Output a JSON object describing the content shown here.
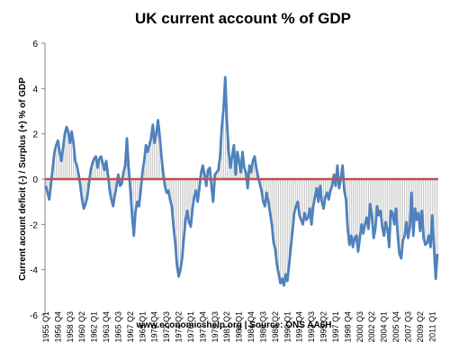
{
  "chart_data": {
    "type": "line",
    "title": "UK current account % of GDP",
    "y_label": "Current acount  deficit (-) / Surplus (+) % of GDP",
    "source": "www.economicshelp.org | Source: ONS AA6H",
    "categories": [
      "1955 Q1",
      null,
      null,
      null,
      null,
      null,
      null,
      "1956 Q4",
      null,
      null,
      null,
      null,
      null,
      null,
      "1958 Q3",
      null,
      null,
      null,
      null,
      null,
      null,
      "1960 Q2",
      null,
      null,
      null,
      null,
      null,
      null,
      "1962 Q1",
      null,
      null,
      null,
      null,
      null,
      null,
      "1963 Q4",
      null,
      null,
      null,
      null,
      null,
      null,
      "1965 Q3",
      null,
      null,
      null,
      null,
      null,
      null,
      "1967 Q2",
      null,
      null,
      null,
      null,
      null,
      null,
      "1969 Q1",
      null,
      null,
      null,
      null,
      null,
      null,
      "1970 Q4",
      null,
      null,
      null,
      null,
      null,
      null,
      "1972 Q3",
      null,
      null,
      null,
      null,
      null,
      null,
      "1974 Q2",
      null,
      null,
      null,
      null,
      null,
      null,
      "1976 Q1",
      null,
      null,
      null,
      null,
      null,
      null,
      "1977 Q4",
      null,
      null,
      null,
      null,
      null,
      null,
      "1979 Q3",
      null,
      null,
      null,
      null,
      null,
      null,
      "1981 Q2",
      null,
      null,
      null,
      null,
      null,
      null,
      "1983 Q1",
      null,
      null,
      null,
      null,
      null,
      null,
      "1984 Q4",
      null,
      null,
      null,
      null,
      null,
      null,
      "1986 Q3",
      null,
      null,
      null,
      null,
      null,
      null,
      "1988 Q2",
      null,
      null,
      null,
      null,
      null,
      null,
      "1990 Q1",
      null,
      null,
      null,
      null,
      null,
      null,
      "1991 Q4",
      null,
      null,
      null,
      null,
      null,
      null,
      "1993 Q3",
      null,
      null,
      null,
      null,
      null,
      null,
      "1995 Q2",
      null,
      null,
      null,
      null,
      null,
      null,
      "1997 Q1",
      null,
      null,
      null,
      null,
      null,
      null,
      "1998 Q4",
      null,
      null,
      null,
      null,
      null,
      null,
      "2000 Q3",
      null,
      null,
      null,
      null,
      null,
      null,
      "2002 Q2",
      null,
      null,
      null,
      null,
      null,
      null,
      "2004 Q1",
      null,
      null,
      null,
      null,
      null,
      null,
      "2005 Q4",
      null,
      null,
      null,
      null,
      null,
      null,
      "2007 Q3",
      null,
      null,
      null,
      null,
      null,
      null,
      "2009 Q2",
      null,
      null,
      null,
      null,
      null,
      null,
      "2011 Q1",
      null,
      null,
      null
    ],
    "series": [
      {
        "color": "#4f81bd",
        "drop_line_color": "#a6a6a6",
        "values": [
          -0.3,
          -0.6,
          -0.9,
          -0.2,
          0.5,
          1.2,
          1.5,
          1.7,
          1.2,
          0.8,
          1.4,
          2.0,
          2.3,
          2.1,
          1.6,
          2.1,
          1.6,
          0.8,
          0.6,
          0.2,
          -0.3,
          -0.9,
          -1.3,
          -1.1,
          -0.8,
          -0.2,
          0.4,
          0.7,
          0.9,
          1.0,
          0.5,
          0.9,
          1.0,
          0.7,
          0.4,
          0.8,
          0.2,
          -0.5,
          -0.9,
          -1.2,
          -0.7,
          -0.3,
          0.2,
          -0.3,
          -0.2,
          0.3,
          0.6,
          1.8,
          0.5,
          -0.5,
          -1.6,
          -2.5,
          -1.4,
          -1.0,
          -1.2,
          -0.5,
          0.3,
          0.8,
          1.5,
          1.2,
          1.5,
          1.8,
          2.4,
          1.6,
          2.0,
          2.6,
          1.9,
          1.0,
          0.3,
          -0.3,
          -0.6,
          -0.5,
          -0.9,
          -1.2,
          -2.1,
          -2.8,
          -3.8,
          -4.3,
          -4.0,
          -3.5,
          -2.6,
          -1.8,
          -1.4,
          -1.9,
          -2.1,
          -1.3,
          -0.8,
          -0.5,
          -1.0,
          -0.4,
          0.3,
          0.6,
          0.2,
          -0.3,
          0.4,
          0.5,
          -0.3,
          -1.0,
          0.2,
          0.3,
          0.4,
          1.0,
          2.3,
          3.1,
          4.5,
          2.5,
          1.2,
          0.5,
          1.0,
          1.5,
          0.2,
          1.2,
          0.8,
          0.3,
          1.2,
          0.5,
          0.3,
          -0.4,
          0.6,
          0.3,
          0.8,
          1.0,
          0.5,
          0.1,
          -0.2,
          -0.5,
          -1.0,
          -1.2,
          -0.6,
          -1.0,
          -1.5,
          -2.0,
          -2.8,
          -3.1,
          -3.8,
          -4.2,
          -4.6,
          -4.4,
          -4.7,
          -4.2,
          -4.5,
          -3.8,
          -3.0,
          -2.3,
          -1.5,
          -1.2,
          -1.0,
          -1.6,
          -1.8,
          -2.0,
          -1.5,
          -1.8,
          -1.7,
          -1.3,
          -2.0,
          -1.2,
          -0.8,
          -0.4,
          -1.0,
          -0.3,
          -1.0,
          -1.3,
          -0.8,
          -0.6,
          -0.9,
          -0.5,
          -0.3,
          0.2,
          -0.3,
          0.6,
          -0.4,
          0.0,
          0.6,
          -0.5,
          -0.9,
          -2.2,
          -2.9,
          -2.5,
          -3.0,
          -2.6,
          -2.5,
          -3.2,
          -2.6,
          -2.0,
          -2.4,
          -2.0,
          -1.7,
          -2.2,
          -1.1,
          -1.6,
          -2.6,
          -2.2,
          -1.2,
          -1.6,
          -1.4,
          -2.1,
          -2.5,
          -1.9,
          -2.2,
          -3.0,
          -1.4,
          -1.5,
          -2.0,
          -1.3,
          -2.5,
          -3.3,
          -3.5,
          -2.7,
          -2.5,
          -1.9,
          -2.6,
          -2.1,
          -0.6,
          -2.5,
          -1.3,
          -1.8,
          -1.5,
          -2.3,
          -1.4,
          -2.6,
          -2.9,
          -2.8,
          -2.5,
          -3.0,
          -1.6,
          -3.0,
          -4.4,
          -3.3
        ]
      }
    ],
    "ylim": [
      -6,
      6
    ],
    "yticks": [
      -6,
      -4,
      -2,
      0,
      2,
      4,
      6
    ],
    "zero_line_color": "#c0504d",
    "drop_lines": true,
    "grid": false
  }
}
